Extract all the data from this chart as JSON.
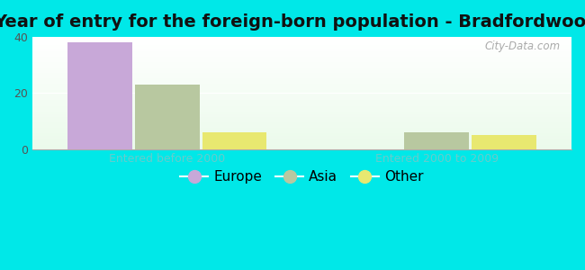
{
  "title": "Year of entry for the foreign-born population - Bradfordwoods",
  "groups": [
    "Entered before 2000",
    "Entered 2000 to 2009"
  ],
  "categories": [
    "Europe",
    "Asia",
    "Other"
  ],
  "values": {
    "Entered before 2000": [
      38,
      23,
      6
    ],
    "Entered 2000 to 2009": [
      0,
      6,
      5
    ]
  },
  "bar_colors": [
    "#c8a8d8",
    "#b8c8a0",
    "#e8e870"
  ],
  "bar_edge_colors": [
    "#c8a8d8",
    "#b8c8a0",
    "#e8e870"
  ],
  "background_color": "#00e8e8",
  "title_fontsize": 14,
  "tick_fontsize": 9,
  "legend_fontsize": 11,
  "xlabel_color": "#66cccc",
  "ylim": [
    0,
    40
  ],
  "yticks": [
    0,
    20,
    40
  ],
  "bar_width": 0.12,
  "watermark": "City-Data.com",
  "group_positions": [
    0.25,
    0.75
  ],
  "xlim": [
    0.0,
    1.0
  ]
}
